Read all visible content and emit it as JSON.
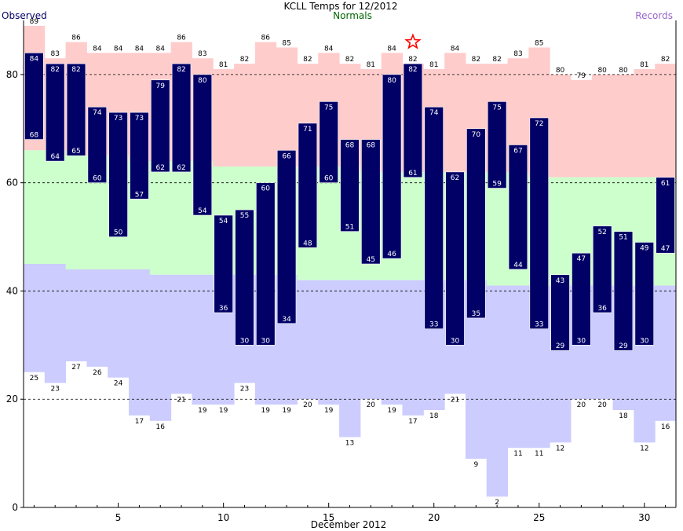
{
  "chart_data": {
    "type": "bar",
    "title": "KCLL Temps for 12/2012",
    "legend": {
      "observed": "Observed",
      "normals": "Normals",
      "records": "Records"
    },
    "xlabel": "December 2012",
    "ylabel": "",
    "ylim": [
      0,
      90
    ],
    "xlim": [
      1,
      32
    ],
    "y_ticks": [
      0,
      20,
      40,
      60,
      80
    ],
    "x_ticks": [
      5,
      10,
      15,
      20,
      25,
      30
    ],
    "grid": "dashed at 20, 40, 60, 80",
    "days": [
      1,
      2,
      3,
      4,
      5,
      6,
      7,
      8,
      9,
      10,
      11,
      12,
      13,
      14,
      15,
      16,
      17,
      18,
      19,
      20,
      21,
      22,
      23,
      24,
      25,
      26,
      27,
      28,
      29,
      30,
      31
    ],
    "record_high": [
      89,
      83,
      86,
      84,
      84,
      84,
      84,
      86,
      83,
      81,
      82,
      86,
      85,
      82,
      84,
      82,
      81,
      84,
      82,
      81,
      84,
      82,
      82,
      83,
      85,
      80,
      79,
      80,
      80,
      81,
      82
    ],
    "record_low": [
      25,
      23,
      27,
      26,
      24,
      17,
      16,
      21,
      19,
      19,
      23,
      19,
      19,
      20,
      19,
      13,
      20,
      19,
      17,
      18,
      21,
      9,
      2,
      11,
      11,
      12,
      20,
      20,
      18,
      12,
      16
    ],
    "normal_high": [
      66,
      66,
      65,
      65,
      65,
      64,
      64,
      64,
      64,
      63,
      63,
      63,
      63,
      63,
      63,
      63,
      62,
      62,
      62,
      62,
      62,
      62,
      62,
      62,
      61,
      61,
      61,
      61,
      61,
      61,
      61
    ],
    "normal_low": [
      45,
      45,
      44,
      44,
      44,
      44,
      43,
      43,
      43,
      43,
      43,
      43,
      43,
      42,
      42,
      42,
      42,
      42,
      42,
      42,
      42,
      42,
      41,
      41,
      41,
      41,
      41,
      41,
      41,
      41,
      41
    ],
    "observed_high": [
      84,
      82,
      82,
      74,
      73,
      73,
      79,
      82,
      80,
      54,
      55,
      60,
      66,
      71,
      75,
      68,
      68,
      80,
      82,
      74,
      62,
      70,
      75,
      67,
      72,
      43,
      47,
      52,
      51,
      49,
      61
    ],
    "observed_low": [
      68,
      64,
      65,
      60,
      50,
      57,
      62,
      62,
      54,
      36,
      30,
      30,
      34,
      48,
      60,
      51,
      45,
      46,
      61,
      33,
      30,
      35,
      59,
      44,
      33,
      29,
      30,
      36,
      29,
      30,
      47
    ],
    "annotations": [
      {
        "type": "star",
        "day": 19,
        "value": 86,
        "note": "record high set"
      }
    ],
    "colors": {
      "records_band": "#ffcccc",
      "normals_band": "#ccffcc",
      "low_band": "#ccccff",
      "observed": "#000066",
      "observed_label": "#000066",
      "normals_label": "#006600",
      "records_label": "#9966cc",
      "star": "#ff0000",
      "grid": "#000000"
    }
  }
}
